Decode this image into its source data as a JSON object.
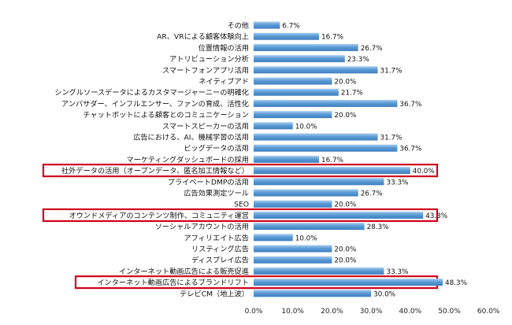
{
  "chart_data": {
    "type": "bar",
    "orientation": "horizontal",
    "title": "",
    "xlabel": "",
    "ylabel": "",
    "xlim": [
      0,
      60
    ],
    "x_ticks": [
      "0.0%",
      "10.0%",
      "20.0%",
      "30.0%",
      "40.0%",
      "50.0%",
      "60.0%"
    ],
    "grid": false,
    "bar_color": "#5b9bd5",
    "highlight_color": "#d0021b",
    "categories": [
      "その他",
      "AR、VRによる顧客体験向上",
      "位置情報の活用",
      "アトリビューション分析",
      "スマートフォンアプリ活用",
      "ネイティブアド",
      "シングルソースデータによるカスタマージャーニーの明確化",
      "アンバサダー、インフルエンサー、ファンの育成、活性化",
      "チャットボットによる顧客とのコミュニケーション",
      "スマートスピーカーの活用",
      "広告における、AI、機械学習の活用",
      "ビッグデータの活用",
      "マーケティングダッシュボードの採用",
      "社外データの活用（オープンデータ、匿名加工情報など）",
      "プライベートDMPの活用",
      "広告効果測定ツール",
      "SEO",
      "オウンドメディアのコンテンツ制作、コミュニティ運営",
      "ソーシャルアカウントの活用",
      "アフィリエイト広告",
      "リスティング広告",
      "ディスプレイ広告",
      "インターネット動画広告による販売促進",
      "インターネット動画広告によるブランドリフト",
      "テレビCM（地上波）"
    ],
    "values": [
      6.7,
      16.7,
      26.7,
      23.3,
      31.7,
      20.0,
      21.7,
      36.7,
      20.0,
      10.0,
      31.7,
      36.7,
      16.7,
      40.0,
      33.3,
      26.7,
      20.0,
      43.3,
      28.3,
      10.0,
      20.0,
      20.0,
      33.3,
      48.3,
      30.0
    ],
    "value_labels": [
      "6.7%",
      "16.7%",
      "26.7%",
      "23.3%",
      "31.7%",
      "20.0%",
      "21.7%",
      "36.7%",
      "20.0%",
      "10.0%",
      "31.7%",
      "36.7%",
      "16.7%",
      "40.0%",
      "33.3%",
      "26.7%",
      "20.0%",
      "43.3%",
      "28.3%",
      "10.0%",
      "20.0%",
      "20.0%",
      "33.3%",
      "48.3%",
      "30.0%"
    ],
    "highlighted": [
      "社外データの活用（オープンデータ、匿名加工情報など）",
      "オウンドメディアのコンテンツ制作、コミュニティ運営",
      "インターネット動画広告によるブランドリフト"
    ]
  }
}
